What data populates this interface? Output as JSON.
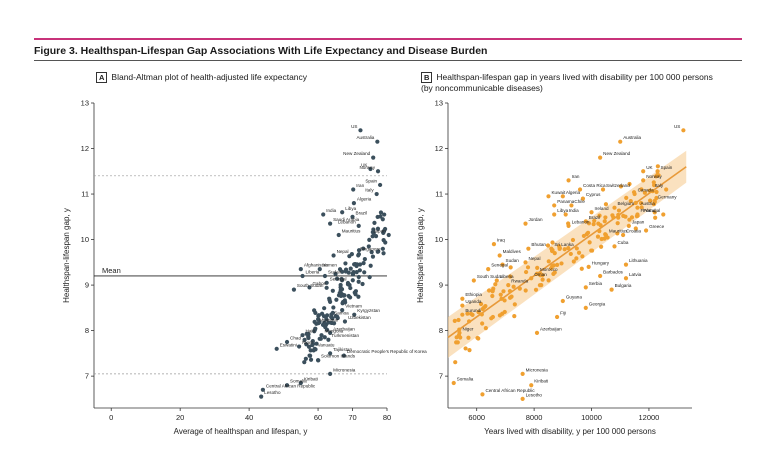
{
  "figure": {
    "title": "Figure 3. Healthspan-Lifespan Gap Associations With Life Expectancy and Disease Burden"
  },
  "chart_data": [
    {
      "panel": "A",
      "type": "scatter",
      "title": "Bland-Altman plot of health-adjusted life expectancy",
      "xlabel": "Average of healthspan and lifespan, y",
      "ylabel": "Healthspan-lifespan gap, y",
      "xlim": [
        -5,
        80
      ],
      "ylim": [
        6.3,
        13
      ],
      "xticks": [
        0,
        20,
        40,
        60,
        70,
        80
      ],
      "yticks": [
        7,
        8,
        9,
        10,
        11,
        12,
        13
      ],
      "mean_line": 9.2,
      "mean_label": "Mean",
      "limit_lines": [
        7.05,
        11.4
      ],
      "point_color": "#3b4f5c",
      "labeled_points": [
        {
          "name": "US",
          "x": 72.3,
          "y": 12.4
        },
        {
          "name": "Australia",
          "x": 77.2,
          "y": 12.15
        },
        {
          "name": "New Zealand",
          "x": 76.0,
          "y": 11.8
        },
        {
          "name": "UK",
          "x": 75.2,
          "y": 11.55
        },
        {
          "name": "Norway",
          "x": 77.4,
          "y": 11.5
        },
        {
          "name": "Spain",
          "x": 78.0,
          "y": 11.2
        },
        {
          "name": "Iran",
          "x": 70.2,
          "y": 11.1
        },
        {
          "name": "Italy",
          "x": 77.0,
          "y": 11.0
        },
        {
          "name": "Algeria",
          "x": 70.4,
          "y": 10.8
        },
        {
          "name": "Libya",
          "x": 67.0,
          "y": 10.6
        },
        {
          "name": "Brazil",
          "x": 70.0,
          "y": 10.5
        },
        {
          "name": "India",
          "x": 61.5,
          "y": 10.55
        },
        {
          "name": "Saudi Arabia",
          "x": 63.5,
          "y": 10.35
        },
        {
          "name": "Lebanon",
          "x": 71.8,
          "y": 10.3
        },
        {
          "name": "Mauritius",
          "x": 66.0,
          "y": 10.1
        },
        {
          "name": "Japan",
          "x": 80.5,
          "y": 10.1
        },
        {
          "name": "Singapore",
          "x": 79.0,
          "y": 9.7
        },
        {
          "name": "Nepal",
          "x": 64.5,
          "y": 9.65
        },
        {
          "name": "Afghanistan",
          "x": 55.0,
          "y": 9.35
        },
        {
          "name": "Yemen",
          "x": 60.5,
          "y": 9.35
        },
        {
          "name": "Liberia",
          "x": 55.5,
          "y": 9.2
        },
        {
          "name": "Sudan",
          "x": 62.0,
          "y": 9.2
        },
        {
          "name": "Senegal",
          "x": 62.5,
          "y": 9.05
        },
        {
          "name": "Gabon",
          "x": 57.5,
          "y": 8.95
        },
        {
          "name": "South Sudan",
          "x": 53.0,
          "y": 8.9
        },
        {
          "name": "Vietnam",
          "x": 67.0,
          "y": 8.45
        },
        {
          "name": "Kyrgyzstan",
          "x": 70.5,
          "y": 8.35
        },
        {
          "name": "Samoa",
          "x": 63.8,
          "y": 8.3
        },
        {
          "name": "Uzbekistan",
          "x": 67.8,
          "y": 8.2
        },
        {
          "name": "Myanmar",
          "x": 59.5,
          "y": 8.15
        },
        {
          "name": "Azerbaijan",
          "x": 63.5,
          "y": 7.95
        },
        {
          "name": "Haiti",
          "x": 55.5,
          "y": 7.9
        },
        {
          "name": "Mongolia",
          "x": 61.0,
          "y": 7.9
        },
        {
          "name": "Turkmenistan",
          "x": 63.0,
          "y": 7.8
        },
        {
          "name": "Chad",
          "x": 51.0,
          "y": 7.75
        },
        {
          "name": "Niger",
          "x": 54.5,
          "y": 7.65
        },
        {
          "name": "Vanuatu",
          "x": 59.0,
          "y": 7.6
        },
        {
          "name": "Eswatini",
          "x": 48.0,
          "y": 7.6
        },
        {
          "name": "Tajikistan",
          "x": 63.5,
          "y": 7.5
        },
        {
          "name": "Democratic People's Republic of Korea",
          "x": 67.5,
          "y": 7.45
        },
        {
          "name": "Solomon Islands",
          "x": 60.0,
          "y": 7.35
        },
        {
          "name": "Micronesia",
          "x": 63.5,
          "y": 7.05
        },
        {
          "name": "Kiribati",
          "x": 55.0,
          "y": 6.85
        },
        {
          "name": "Somalia",
          "x": 51.0,
          "y": 6.8
        },
        {
          "name": "Central African Republic",
          "x": 44.0,
          "y": 6.7
        },
        {
          "name": "Lesotho",
          "x": 43.5,
          "y": 6.55
        }
      ]
    },
    {
      "panel": "B",
      "type": "scatter",
      "title": "Healthspan-lifespan gap in years lived with disability per 100 000 persons",
      "title_line2": "(by noncommunicable diseases)",
      "xlabel": "Years lived with disability, y per 100 000 persons",
      "ylabel": "Healthspan-lifespan gap, y",
      "xlim": [
        5000,
        13500
      ],
      "ylim": [
        6.3,
        13
      ],
      "xticks": [
        6000,
        8000,
        10000,
        12000
      ],
      "yticks": [
        7,
        8,
        9,
        10,
        11,
        12,
        13
      ],
      "regression": {
        "x": [
          5000,
          13300
        ],
        "y": [
          7.85,
          11.6
        ]
      },
      "point_color": "#f0a030",
      "labeled_points": [
        {
          "name": "US",
          "x": 13200,
          "y": 12.4
        },
        {
          "name": "Australia",
          "x": 11000,
          "y": 12.15
        },
        {
          "name": "New Zealand",
          "x": 10300,
          "y": 11.8
        },
        {
          "name": "UK",
          "x": 11800,
          "y": 11.5
        },
        {
          "name": "Spain",
          "x": 12300,
          "y": 11.5
        },
        {
          "name": "Iran",
          "x": 9200,
          "y": 11.3
        },
        {
          "name": "Norway",
          "x": 11800,
          "y": 11.3
        },
        {
          "name": "Italy",
          "x": 12600,
          "y": 11.1
        },
        {
          "name": "Costa Rica",
          "x": 9600,
          "y": 11.1
        },
        {
          "name": "Switzerland",
          "x": 10400,
          "y": 11.1
        },
        {
          "name": "Canada",
          "x": 11500,
          "y": 11.0
        },
        {
          "name": "Kuwait",
          "x": 8500,
          "y": 10.95
        },
        {
          "name": "Algeria",
          "x": 9000,
          "y": 10.95
        },
        {
          "name": "Cyprus",
          "x": 9700,
          "y": 10.9
        },
        {
          "name": "Germany",
          "x": 12200,
          "y": 10.85
        },
        {
          "name": "Panama",
          "x": 8700,
          "y": 10.75
        },
        {
          "name": "Chile",
          "x": 9300,
          "y": 10.75
        },
        {
          "name": "Belgium",
          "x": 10800,
          "y": 10.7
        },
        {
          "name": "Austria",
          "x": 11600,
          "y": 10.7
        },
        {
          "name": "Libya",
          "x": 8700,
          "y": 10.55
        },
        {
          "name": "India",
          "x": 9100,
          "y": 10.55
        },
        {
          "name": "Ireland",
          "x": 10000,
          "y": 10.6
        },
        {
          "name": "Finland",
          "x": 11600,
          "y": 10.55
        },
        {
          "name": "Portugal",
          "x": 12500,
          "y": 10.55
        },
        {
          "name": "Jordan",
          "x": 7700,
          "y": 10.35
        },
        {
          "name": "Brazil",
          "x": 9800,
          "y": 10.4
        },
        {
          "name": "Lebanon",
          "x": 9200,
          "y": 10.3
        },
        {
          "name": "Japan",
          "x": 11300,
          "y": 10.3
        },
        {
          "name": "Greece",
          "x": 11900,
          "y": 10.2
        },
        {
          "name": "Mauritius",
          "x": 10500,
          "y": 10.1
        },
        {
          "name": "Croatia",
          "x": 11100,
          "y": 10.1
        },
        {
          "name": "Iraq",
          "x": 6600,
          "y": 9.9
        },
        {
          "name": "Cuba",
          "x": 10800,
          "y": 9.85
        },
        {
          "name": "Bhutan",
          "x": 7800,
          "y": 9.8
        },
        {
          "name": "Sri Lanka",
          "x": 8600,
          "y": 9.8
        },
        {
          "name": "Maldives",
          "x": 6800,
          "y": 9.65
        },
        {
          "name": "Nepal",
          "x": 7700,
          "y": 9.5
        },
        {
          "name": "Sudan",
          "x": 6900,
          "y": 9.45
        },
        {
          "name": "Senegal",
          "x": 6400,
          "y": 9.35
        },
        {
          "name": "Lithuania",
          "x": 11200,
          "y": 9.45
        },
        {
          "name": "Hungary",
          "x": 9900,
          "y": 9.4
        },
        {
          "name": "Morocco",
          "x": 8100,
          "y": 9.25
        },
        {
          "name": "Barbados",
          "x": 10300,
          "y": 9.2
        },
        {
          "name": "South Sudan",
          "x": 5900,
          "y": 9.1
        },
        {
          "name": "Liberia",
          "x": 6700,
          "y": 9.1
        },
        {
          "name": "Oman",
          "x": 7900,
          "y": 9.15
        },
        {
          "name": "Latvia",
          "x": 11200,
          "y": 9.15
        },
        {
          "name": "Rwanda",
          "x": 7100,
          "y": 9.0
        },
        {
          "name": "Serbia",
          "x": 9800,
          "y": 8.95
        },
        {
          "name": "Bulgaria",
          "x": 10700,
          "y": 8.9
        },
        {
          "name": "Ethiopia",
          "x": 5500,
          "y": 8.7
        },
        {
          "name": "Uganda",
          "x": 5500,
          "y": 8.55
        },
        {
          "name": "Guyana",
          "x": 9000,
          "y": 8.65
        },
        {
          "name": "Georgia",
          "x": 9800,
          "y": 8.5
        },
        {
          "name": "Burundi",
          "x": 5500,
          "y": 8.35
        },
        {
          "name": "Fiji",
          "x": 8800,
          "y": 8.3
        },
        {
          "name": "Niger",
          "x": 5400,
          "y": 7.95
        },
        {
          "name": "Azerbaijan",
          "x": 8100,
          "y": 7.95
        },
        {
          "name": "Micronesia",
          "x": 7600,
          "y": 7.05
        },
        {
          "name": "Somalia",
          "x": 5200,
          "y": 6.85
        },
        {
          "name": "Kiribati",
          "x": 7900,
          "y": 6.8
        },
        {
          "name": "Central African Republic",
          "x": 6200,
          "y": 6.6
        },
        {
          "name": "Lesotho",
          "x": 7600,
          "y": 6.5
        }
      ]
    }
  ]
}
